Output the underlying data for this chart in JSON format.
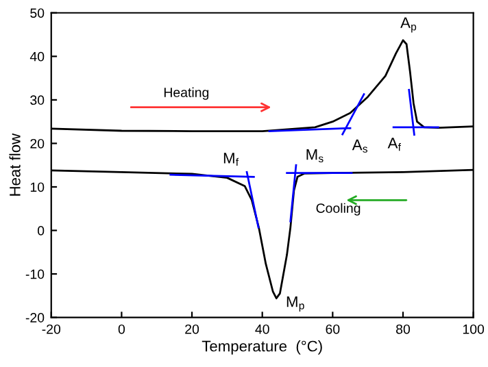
{
  "chart_data": {
    "type": "line",
    "xlabel": "Temperature  (°C)",
    "ylabel": "Heat flow",
    "xlim": [
      -20,
      100
    ],
    "ylim": [
      -20,
      50
    ],
    "xticks": [
      -20,
      0,
      20,
      40,
      60,
      80,
      100
    ],
    "yticks": [
      -20,
      -10,
      0,
      10,
      20,
      30,
      40,
      50
    ],
    "grid": false,
    "legend": false,
    "marker": "none",
    "line_style": "solid",
    "series": [
      {
        "color": "#000000",
        "x": [
          -20,
          0,
          20,
          40,
          55,
          60,
          65,
          70,
          75,
          78,
          80,
          81,
          82,
          83,
          84,
          86,
          90,
          100
        ],
        "values": [
          23.4,
          22.9,
          22.8,
          22.8,
          23.7,
          25.0,
          27.0,
          30.7,
          35.5,
          40.7,
          43.7,
          42.8,
          36.5,
          29.2,
          25.0,
          23.7,
          23.6,
          23.9
        ]
      },
      {
        "color": "#000000",
        "x": [
          -20,
          0,
          20,
          30,
          35,
          37,
          39,
          41,
          43,
          44,
          45,
          47,
          48,
          49,
          50,
          52,
          60,
          80,
          100
        ],
        "values": [
          13.8,
          13.4,
          13.0,
          12.1,
          10.2,
          7.0,
          0.7,
          -7.7,
          -14.0,
          -15.6,
          -14.5,
          -5.6,
          0.7,
          9.2,
          12.3,
          13.1,
          13.2,
          13.4,
          13.9
        ]
      },
      {
        "color": "#0000ff",
        "x": [
          42,
          65
        ],
        "values": [
          22.8,
          23.5
        ]
      },
      {
        "color": "#0000ff",
        "x": [
          62.8,
          68.9
        ],
        "values": [
          22.1,
          31.3
        ]
      },
      {
        "color": "#0000ff",
        "x": [
          81.7,
          83.2
        ],
        "values": [
          32.3,
          22.0
        ]
      },
      {
        "color": "#0000ff",
        "x": [
          77.3,
          90
        ],
        "values": [
          23.7,
          23.7
        ]
      },
      {
        "color": "#0000ff",
        "x": [
          49.6,
          48
        ],
        "values": [
          15.0,
          2.1
        ]
      },
      {
        "color": "#0000ff",
        "x": [
          47,
          65.4
        ],
        "values": [
          13.2,
          13.2
        ]
      },
      {
        "color": "#0000ff",
        "x": [
          13.9,
          37.6
        ],
        "values": [
          12.8,
          12.3
        ]
      },
      {
        "color": "#0000ff",
        "x": [
          35.6,
          38.9
        ],
        "values": [
          13.4,
          0.7
        ]
      }
    ],
    "annotations": [
      {
        "text": "A$_{p}$",
        "x": 80,
        "y": 43.7
      },
      {
        "text": "A$_{s}$",
        "x": 63.5,
        "y": 23.3
      },
      {
        "text": "A$_{f}$",
        "x": 83,
        "y": 23.7
      },
      {
        "text": "M$_{f}$",
        "x": 36.5,
        "y": 12.4
      },
      {
        "text": "M$_{s}$",
        "x": 49.5,
        "y": 13.2
      },
      {
        "text": "M$_{p}$",
        "x": 44,
        "y": -15.6
      },
      "Heating",
      "Cooling"
    ]
  }
}
